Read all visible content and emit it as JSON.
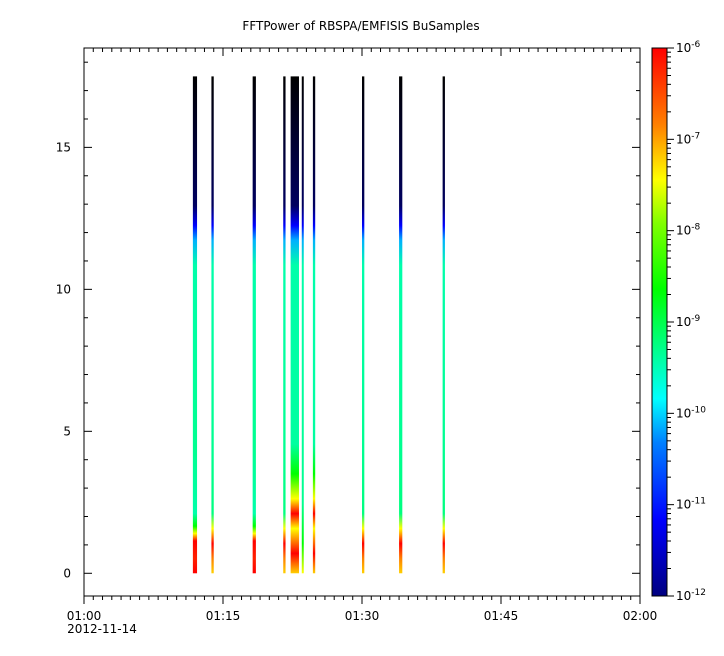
{
  "chart_data": {
    "type": "heatmap",
    "title": "FFTPower of RBSPA/EMFISIS  BuSamples",
    "xlabel": "",
    "ylabel": "",
    "x_ticks": [
      {
        "label": "01:00",
        "minutes": 0,
        "sublabel": "2012-11-14"
      },
      {
        "label": "01:15",
        "minutes": 15
      },
      {
        "label": "01:30",
        "minutes": 30
      },
      {
        "label": "01:45",
        "minutes": 45
      },
      {
        "label": "02:00",
        "minutes": 60
      }
    ],
    "xlim_minutes": [
      0,
      60
    ],
    "y_ticks": [
      0,
      5,
      10,
      15
    ],
    "ylim": [
      -0.8,
      18.5
    ],
    "colorbar": {
      "scale": "log",
      "range": [
        1e-12,
        1e-06
      ],
      "tick_labels": [
        {
          "mantissa": "10",
          "exponent": "-6",
          "value": -6
        },
        {
          "mantissa": "10",
          "exponent": "-7",
          "value": -7
        },
        {
          "mantissa": "10",
          "exponent": "-8",
          "value": -8
        },
        {
          "mantissa": "10",
          "exponent": "-9",
          "value": -9
        },
        {
          "mantissa": "10",
          "exponent": "-10",
          "value": -10
        },
        {
          "mantissa": "10",
          "exponent": "-11",
          "value": -11
        },
        {
          "mantissa": "10",
          "exponent": "-12",
          "value": -12
        }
      ],
      "colors": [
        "#000080",
        "#0000ff",
        "#00ffff",
        "#00ff00",
        "#ffff00",
        "#ff0000"
      ]
    },
    "y_top_of_data": 17.5,
    "columns": [
      {
        "start_min": 11.75,
        "end_min": 12.2,
        "profile": "strong"
      },
      {
        "start_min": 13.75,
        "end_min": 14.0,
        "profile": "mid"
      },
      {
        "start_min": 18.2,
        "end_min": 18.55,
        "profile": "strong"
      },
      {
        "start_min": 21.5,
        "end_min": 21.75,
        "profile": "mid"
      },
      {
        "start_min": 22.3,
        "end_min": 23.2,
        "profile": "broad"
      },
      {
        "start_min": 23.5,
        "end_min": 23.7,
        "profile": "weak"
      },
      {
        "start_min": 24.7,
        "end_min": 24.95,
        "profile": "broad"
      },
      {
        "start_min": 30.0,
        "end_min": 30.25,
        "profile": "mid"
      },
      {
        "start_min": 34.0,
        "end_min": 34.35,
        "profile": "mid"
      },
      {
        "start_min": 38.7,
        "end_min": 38.95,
        "profile": "mid"
      }
    ]
  }
}
